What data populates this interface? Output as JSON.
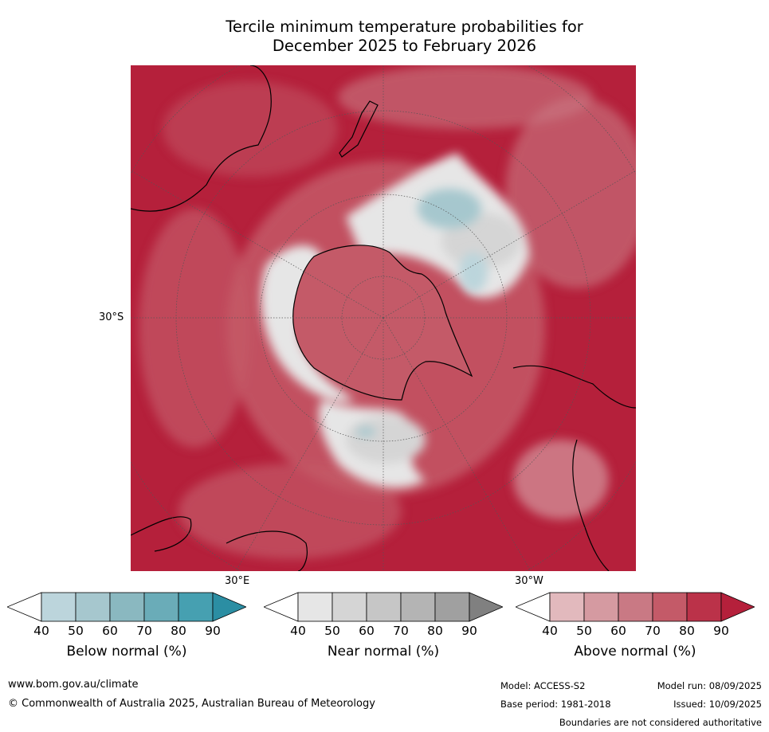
{
  "title": {
    "line1": "Tercile minimum temperature probabilities for",
    "line2": "December 2025 to February 2026"
  },
  "map": {
    "projection_labels": {
      "lat_30s": "30°S",
      "lon_30e": "30°E",
      "lon_30w": "30°W"
    }
  },
  "colorbars": [
    {
      "label": "Below normal (%)",
      "ticks": [
        "40",
        "50",
        "60",
        "70",
        "80",
        "90"
      ],
      "colors": [
        "#ffffff",
        "#bcd5dc",
        "#a6c7ce",
        "#8ab8c0",
        "#6aacb8",
        "#46a0b1",
        "#2b8ea3"
      ]
    },
    {
      "label": "Near normal (%)",
      "ticks": [
        "40",
        "50",
        "60",
        "70",
        "80",
        "90"
      ],
      "colors": [
        "#ffffff",
        "#e6e6e6",
        "#d5d5d5",
        "#c6c6c6",
        "#b4b4b4",
        "#a0a0a0",
        "#808080"
      ]
    },
    {
      "label": "Above normal (%)",
      "ticks": [
        "40",
        "50",
        "60",
        "70",
        "80",
        "90"
      ],
      "colors": [
        "#ffffff",
        "#e2b9bd",
        "#d59aa1",
        "#c97984",
        "#c45a68",
        "#bb3249",
        "#b5203b"
      ]
    }
  ],
  "footer": {
    "website": "www.bom.gov.au/climate",
    "copyright": "© Commonwealth of Australia 2025, Australian Bureau of Meteorology",
    "model": "Model: ACCESS-S2",
    "base_period": "Base period: 1981-2018",
    "model_run": "Model run: 08/09/2025",
    "issued": "Issued: 10/09/2025",
    "boundaries": "Boundaries are not considered authoritative"
  }
}
